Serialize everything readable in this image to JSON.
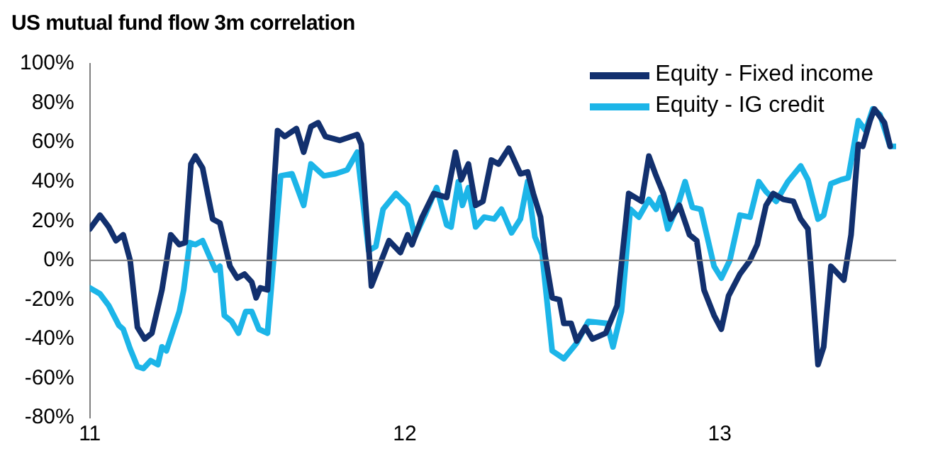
{
  "chart_data": {
    "type": "line",
    "title": "US mutual fund flow 3m correlation",
    "xlim": [
      2011,
      2013.56
    ],
    "xticks": [
      {
        "value": 2011,
        "label": "11"
      },
      {
        "value": 2012,
        "label": "12"
      },
      {
        "value": 2013,
        "label": "13"
      }
    ],
    "ylim": [
      -80,
      100
    ],
    "yticks": [
      {
        "value": -80,
        "label": "-80%"
      },
      {
        "value": -60,
        "label": "-60%"
      },
      {
        "value": -40,
        "label": "-40%"
      },
      {
        "value": -20,
        "label": "-20%"
      },
      {
        "value": 0,
        "label": "0%"
      },
      {
        "value": 20,
        "label": "20%"
      },
      {
        "value": 40,
        "label": "40%"
      },
      {
        "value": 60,
        "label": "60%"
      },
      {
        "value": 80,
        "label": "80%"
      },
      {
        "value": 100,
        "label": "100%"
      }
    ],
    "grid": false,
    "legend": "top right",
    "marker": "none",
    "line_style": "solid",
    "ref_lines": [
      {
        "axis": "y",
        "value": 0,
        "color": "#808080"
      }
    ],
    "series": [
      {
        "name": "Equity - Fixed income",
        "color": "#12306e",
        "x": [
          2011.0,
          2011.032,
          2011.06,
          2011.083,
          2011.106,
          2011.128,
          2011.151,
          2011.174,
          2011.197,
          2011.229,
          2011.257,
          2011.284,
          2011.303,
          2011.321,
          2011.335,
          2011.358,
          2011.39,
          2011.413,
          2011.445,
          2011.468,
          2011.491,
          2011.514,
          2011.528,
          2011.541,
          2011.564,
          2011.596,
          2011.619,
          2011.656,
          2011.679,
          2011.702,
          2011.725,
          2011.748,
          2011.794,
          2011.849,
          2011.862,
          2011.894,
          2011.95,
          2011.986,
          2012.009,
          2012.023,
          2012.055,
          2012.092,
          2012.133,
          2012.161,
          2012.179,
          2012.202,
          2012.225,
          2012.248,
          2012.275,
          2012.298,
          2012.33,
          2012.367,
          2012.39,
          2012.408,
          2012.431,
          2012.445,
          2012.468,
          2012.491,
          2012.505,
          2012.528,
          2012.546,
          2012.573,
          2012.596,
          2012.638,
          2012.674,
          2012.711,
          2012.752,
          2012.775,
          2012.798,
          2012.821,
          2012.844,
          2012.872,
          2012.904,
          2012.927,
          2012.95,
          2012.982,
          2013.005,
          2013.028,
          2013.064,
          2013.096,
          2013.119,
          2013.147,
          2013.17,
          2013.202,
          2013.234,
          2013.257,
          2013.28,
          2013.294,
          2013.312,
          2013.33,
          2013.353,
          2013.394,
          2013.417,
          2013.44,
          2013.454,
          2013.477,
          2013.491,
          2013.523,
          2013.541
        ],
        "values": [
          16,
          23,
          17,
          10,
          13,
          0,
          -34,
          -40,
          -37,
          -15,
          13,
          8,
          9,
          49,
          53,
          47,
          21,
          19,
          -3,
          -9,
          -7,
          -11,
          -19,
          -14,
          -15,
          66,
          63,
          67,
          55,
          68,
          70,
          63,
          61,
          64,
          59,
          -13,
          10,
          4,
          13,
          8,
          22,
          34,
          32,
          55,
          41,
          49,
          28,
          30,
          51,
          49,
          57,
          44,
          45,
          34,
          22,
          3,
          -19,
          -20,
          -32,
          -32,
          -41,
          -34,
          -40,
          -37,
          -23,
          34,
          30,
          53,
          43,
          34,
          21,
          28,
          13,
          10,
          -15,
          -28,
          -35,
          -18,
          -7,
          0,
          8,
          28,
          34,
          31,
          30,
          21,
          16,
          -13,
          -53,
          -44,
          -3,
          -10,
          13,
          59,
          58,
          71,
          77,
          70,
          58
        ]
      },
      {
        "name": "Equity - IG credit",
        "color": "#1cb5e8",
        "x": [
          2011.0,
          2011.032,
          2011.06,
          2011.092,
          2011.106,
          2011.128,
          2011.151,
          2011.17,
          2011.193,
          2011.216,
          2011.229,
          2011.243,
          2011.284,
          2011.298,
          2011.317,
          2011.335,
          2011.358,
          2011.399,
          2011.413,
          2011.427,
          2011.45,
          2011.472,
          2011.495,
          2011.514,
          2011.537,
          2011.564,
          2011.606,
          2011.642,
          2011.679,
          2011.702,
          2011.743,
          2011.78,
          2011.817,
          2011.849,
          2011.885,
          2011.908,
          2011.931,
          2011.972,
          2012.009,
          2012.032,
          2012.064,
          2012.101,
          2012.133,
          2012.147,
          2012.17,
          2012.183,
          2012.202,
          2012.225,
          2012.252,
          2012.284,
          2012.307,
          2012.339,
          2012.367,
          2012.39,
          2012.413,
          2012.436,
          2012.468,
          2012.505,
          2012.546,
          2012.583,
          2012.642,
          2012.661,
          2012.688,
          2012.716,
          2012.743,
          2012.775,
          2012.798,
          2012.812,
          2012.835,
          2012.867,
          2012.89,
          2012.913,
          2012.94,
          2012.982,
          2013.005,
          2013.032,
          2013.064,
          2013.096,
          2013.124,
          2013.147,
          2013.179,
          2013.216,
          2013.257,
          2013.28,
          2013.312,
          2013.33,
          2013.353,
          2013.385,
          2013.408,
          2013.44,
          2013.463,
          2013.486,
          2013.509,
          2013.541,
          2013.56
        ],
        "values": [
          -14,
          -17,
          -23,
          -33,
          -35,
          -45,
          -54,
          -55,
          -51,
          -53,
          -44,
          -46,
          -26,
          -15,
          9,
          8,
          10,
          -5,
          -3,
          -28,
          -31,
          -37,
          -26,
          -26,
          -35,
          -37,
          43,
          44,
          28,
          49,
          43,
          44,
          46,
          55,
          5,
          7,
          26,
          34,
          28,
          12,
          23,
          37,
          18,
          17,
          40,
          28,
          37,
          17,
          22,
          21,
          26,
          14,
          21,
          40,
          12,
          3,
          -46,
          -50,
          -42,
          -31,
          -32,
          -44,
          -26,
          26,
          22,
          31,
          26,
          32,
          16,
          28,
          40,
          27,
          26,
          -3,
          -9,
          0,
          23,
          22,
          40,
          35,
          30,
          40,
          48,
          41,
          21,
          23,
          39,
          41,
          42,
          71,
          66,
          77,
          74,
          58,
          58
        ]
      }
    ]
  }
}
